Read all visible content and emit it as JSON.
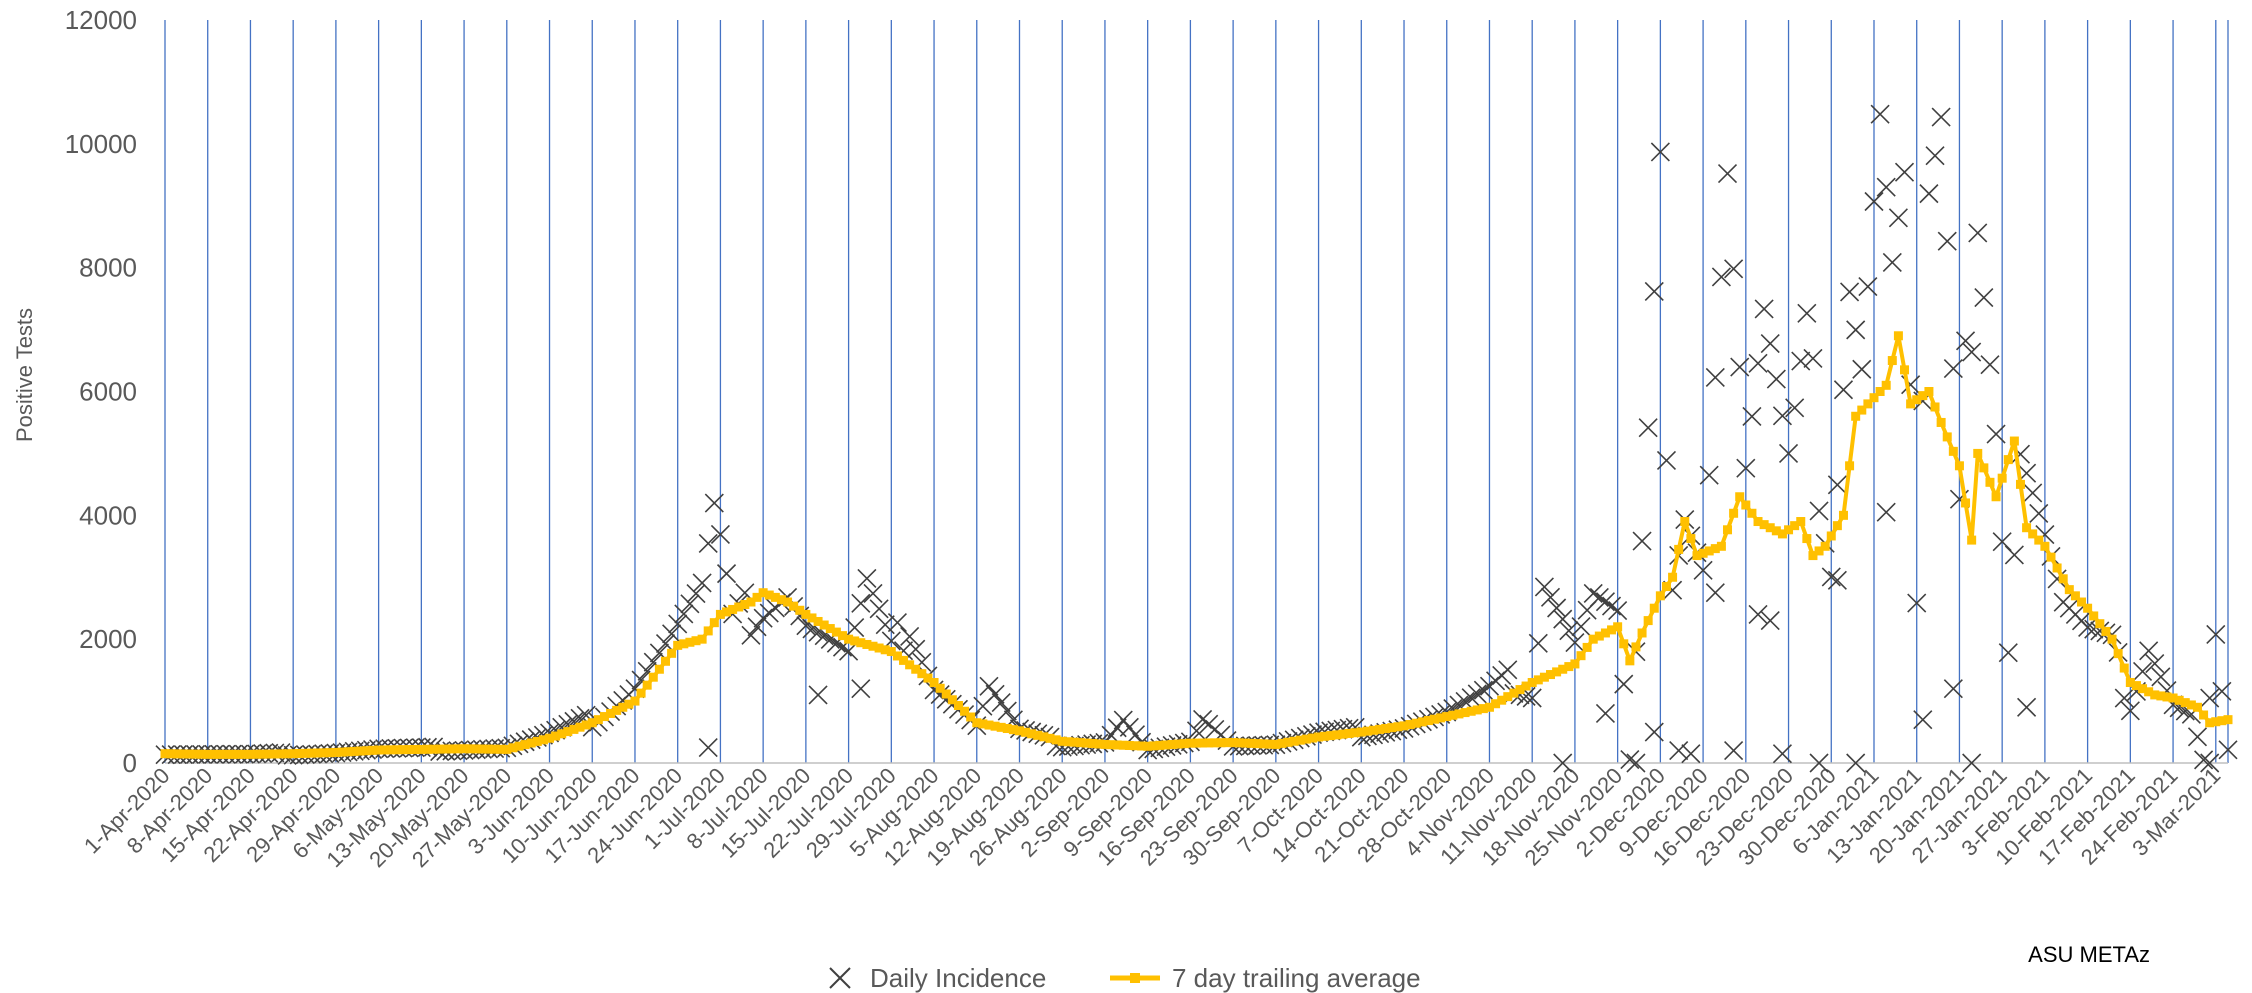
{
  "chart_data": {
    "type": "scatter",
    "title": "",
    "ylabel": "Positive Tests",
    "xlabel": "",
    "ylim": [
      0,
      12000
    ],
    "yticks": [
      0,
      2000,
      4000,
      6000,
      8000,
      10000,
      12000
    ],
    "grid": "vertical lines at each weekly date tick",
    "legend_position": "bottom-center",
    "credit": "ASU METAz",
    "xtick_labels": [
      "1-Apr-2020",
      "8-Apr-2020",
      "15-Apr-2020",
      "22-Apr-2020",
      "29-Apr-2020",
      "6-May-2020",
      "13-May-2020",
      "20-May-2020",
      "27-May-2020",
      "3-Jun-2020",
      "10-Jun-2020",
      "17-Jun-2020",
      "24-Jun-2020",
      "1-Jul-2020",
      "8-Jul-2020",
      "15-Jul-2020",
      "22-Jul-2020",
      "29-Jul-2020",
      "5-Aug-2020",
      "12-Aug-2020",
      "19-Aug-2020",
      "26-Aug-2020",
      "2-Sep-2020",
      "9-Sep-2020",
      "16-Sep-2020",
      "23-Sep-2020",
      "30-Sep-2020",
      "7-Oct-2020",
      "14-Oct-2020",
      "21-Oct-2020",
      "28-Oct-2020",
      "4-Nov-2020",
      "11-Nov-2020",
      "18-Nov-2020",
      "25-Nov-2020",
      "2-Dec-2020",
      "9-Dec-2020",
      "16-Dec-2020",
      "23-Dec-2020",
      "30-Dec-2020",
      "6-Jan-2021",
      "13-Jan-2021",
      "20-Jan-2021",
      "27-Jan-2021",
      "3-Feb-2021",
      "10-Feb-2021",
      "17-Feb-2021",
      "24-Feb-2021",
      "3-Mar-2021"
    ],
    "x_start": "1-Apr-2020",
    "x_end": "5-Mar-2021",
    "series": [
      {
        "name": "Daily Incidence",
        "marker": "x",
        "color": "#404040",
        "note": "weekly anchor values; daily points interpolated between them",
        "anchors": [
          [
            "1-Apr-2020",
            150
          ],
          [
            "8-Apr-2020",
            140
          ],
          [
            "15-Apr-2020",
            130
          ],
          [
            "22-Apr-2020",
            150
          ],
          [
            "29-Apr-2020",
            170
          ],
          [
            "6-May-2020",
            220
          ],
          [
            "13-May-2020",
            220
          ],
          [
            "20-May-2020",
            230
          ],
          [
            "27-May-2020",
            250
          ],
          [
            "3-Jun-2020",
            450
          ],
          [
            "10-Jun-2020",
            700
          ],
          [
            "17-Jun-2020",
            1300
          ],
          [
            "24-Jun-2020",
            2200
          ],
          [
            "28-Jun-2020",
            2700
          ],
          [
            "30-Jun-2020",
            3800
          ],
          [
            "1-Jul-2020",
            3300
          ],
          [
            "3-Jul-2020",
            2100
          ],
          [
            "8-Jul-2020",
            2700
          ],
          [
            "12-Jul-2020",
            2900
          ],
          [
            "15-Jul-2020",
            2300
          ],
          [
            "22-Jul-2020",
            1700
          ],
          [
            "25-Jul-2020",
            2700
          ],
          [
            "29-Jul-2020",
            1700
          ],
          [
            "1-Aug-2020",
            2400
          ],
          [
            "5-Aug-2020",
            1300
          ],
          [
            "12-Aug-2020",
            600
          ],
          [
            "14-Aug-2020",
            1200
          ],
          [
            "19-Aug-2020",
            500
          ],
          [
            "26-Aug-2020",
            300
          ],
          [
            "2-Sep-2020",
            350
          ],
          [
            "5-Sep-2020",
            700
          ],
          [
            "9-Sep-2020",
            200
          ],
          [
            "16-Sep-2020",
            300
          ],
          [
            "19-Sep-2020",
            750
          ],
          [
            "23-Sep-2020",
            300
          ],
          [
            "30-Sep-2020",
            300
          ],
          [
            "7-Oct-2020",
            450
          ],
          [
            "14-Oct-2020",
            500
          ],
          [
            "21-Oct-2020",
            600
          ],
          [
            "28-Oct-2020",
            800
          ],
          [
            "4-Nov-2020",
            1100
          ],
          [
            "8-Nov-2020",
            1350
          ],
          [
            "11-Nov-2020",
            1200
          ],
          [
            "13-Nov-2020",
            3150
          ],
          [
            "18-Nov-2020",
            2000
          ],
          [
            "21-Nov-2020",
            2700
          ],
          [
            "25-Nov-2020",
            2300
          ],
          [
            "27-Nov-2020",
            50
          ],
          [
            "30-Nov-2020",
            4750
          ],
          [
            "2-Dec-2020",
            8450
          ],
          [
            "4-Dec-2020",
            3300
          ],
          [
            "6-Dec-2020",
            4500
          ],
          [
            "9-Dec-2020",
            3400
          ],
          [
            "13-Dec-2020",
            9800
          ],
          [
            "16-Dec-2020",
            4700
          ],
          [
            "19-Dec-2020",
            6950
          ],
          [
            "23-Dec-2020",
            4500
          ],
          [
            "26-Dec-2020",
            6300
          ],
          [
            "30-Dec-2020",
            3500
          ],
          [
            "2-Jan-2021",
            8450
          ],
          [
            "4-Jan-2021",
            6850
          ],
          [
            "7-Jan-2021",
            10800
          ],
          [
            "9-Jan-2021",
            8100
          ],
          [
            "11-Jan-2021",
            9300
          ],
          [
            "13-Jan-2021",
            2450
          ],
          [
            "15-Jan-2021",
            8500
          ],
          [
            "17-Jan-2021",
            9400
          ],
          [
            "20-Jan-2021",
            3700
          ],
          [
            "23-Jan-2021",
            10150
          ],
          [
            "26-Jan-2021",
            6000
          ],
          [
            "28-Jan-2021",
            1950
          ],
          [
            "30-Jan-2021",
            5300
          ],
          [
            "3-Feb-2021",
            3700
          ],
          [
            "6-Feb-2021",
            2500
          ],
          [
            "10-Feb-2021",
            2000
          ],
          [
            "14-Feb-2021",
            1800
          ],
          [
            "17-Feb-2021",
            1000
          ],
          [
            "20-Feb-2021",
            2050
          ],
          [
            "24-Feb-2021",
            1000
          ],
          [
            "27-Feb-2021",
            800
          ],
          [
            "1-Mar-2021",
            50
          ],
          [
            "3-Mar-2021",
            2000
          ],
          [
            "5-Mar-2021",
            200
          ]
        ],
        "outliers": [
          [
            "29-Jun-2020",
            250
          ],
          [
            "17-Jul-2020",
            1100
          ],
          [
            "24-Jul-2020",
            1200
          ],
          [
            "16-Nov-2020",
            0
          ],
          [
            "23-Nov-2020",
            800
          ],
          [
            "28-Nov-2020",
            0
          ],
          [
            "1-Dec-2020",
            500
          ],
          [
            "5-Dec-2020",
            200
          ],
          [
            "7-Dec-2020",
            150
          ],
          [
            "11-Dec-2020",
            2750
          ],
          [
            "14-Dec-2020",
            200
          ],
          [
            "18-Dec-2020",
            2400
          ],
          [
            "20-Dec-2020",
            2300
          ],
          [
            "22-Dec-2020",
            150
          ],
          [
            "28-Dec-2020",
            0
          ],
          [
            "31-Dec-2020",
            2950
          ],
          [
            "3-Jan-2021",
            0
          ],
          [
            "8-Jan-2021",
            4050
          ],
          [
            "14-Jan-2021",
            700
          ],
          [
            "19-Jan-2021",
            1200
          ],
          [
            "22-Jan-2021",
            0
          ],
          [
            "31-Jan-2021",
            900
          ],
          [
            "2-Mar-2021",
            0
          ]
        ]
      },
      {
        "name": "7 day trailing average",
        "marker": "square-line",
        "color": "#FFC000",
        "note": "weekly anchor values; daily points interpolated between them",
        "anchors": [
          [
            "1-Apr-2020",
            150
          ],
          [
            "8-Apr-2020",
            140
          ],
          [
            "15-Apr-2020",
            140
          ],
          [
            "22-Apr-2020",
            150
          ],
          [
            "29-Apr-2020",
            170
          ],
          [
            "6-May-2020",
            210
          ],
          [
            "13-May-2020",
            220
          ],
          [
            "20-May-2020",
            230
          ],
          [
            "27-May-2020",
            220
          ],
          [
            "3-Jun-2020",
            400
          ],
          [
            "10-Jun-2020",
            650
          ],
          [
            "17-Jun-2020",
            1000
          ],
          [
            "24-Jun-2020",
            1900
          ],
          [
            "28-Jun-2020",
            2000
          ],
          [
            "1-Jul-2020",
            2400
          ],
          [
            "6-Jul-2020",
            2600
          ],
          [
            "8-Jul-2020",
            2750
          ],
          [
            "12-Jul-2020",
            2600
          ],
          [
            "15-Jul-2020",
            2400
          ],
          [
            "22-Jul-2020",
            2000
          ],
          [
            "29-Jul-2020",
            1800
          ],
          [
            "5-Aug-2020",
            1300
          ],
          [
            "12-Aug-2020",
            650
          ],
          [
            "19-Aug-2020",
            520
          ],
          [
            "26-Aug-2020",
            350
          ],
          [
            "2-Sep-2020",
            300
          ],
          [
            "9-Sep-2020",
            270
          ],
          [
            "16-Sep-2020",
            320
          ],
          [
            "23-Sep-2020",
            330
          ],
          [
            "30-Sep-2020",
            300
          ],
          [
            "7-Oct-2020",
            420
          ],
          [
            "14-Oct-2020",
            500
          ],
          [
            "21-Oct-2020",
            600
          ],
          [
            "28-Oct-2020",
            750
          ],
          [
            "4-Nov-2020",
            900
          ],
          [
            "11-Nov-2020",
            1300
          ],
          [
            "18-Nov-2020",
            1600
          ],
          [
            "21-Nov-2020",
            2000
          ],
          [
            "25-Nov-2020",
            2200
          ],
          [
            "27-Nov-2020",
            1650
          ],
          [
            "29-Nov-2020",
            2100
          ],
          [
            "2-Dec-2020",
            2700
          ],
          [
            "4-Dec-2020",
            3000
          ],
          [
            "6-Dec-2020",
            3900
          ],
          [
            "8-Dec-2020",
            3350
          ],
          [
            "12-Dec-2020",
            3500
          ],
          [
            "15-Dec-2020",
            4300
          ],
          [
            "18-Dec-2020",
            3900
          ],
          [
            "22-Dec-2020",
            3700
          ],
          [
            "25-Dec-2020",
            3900
          ],
          [
            "27-Dec-2020",
            3350
          ],
          [
            "29-Dec-2020",
            3500
          ],
          [
            "1-Jan-2021",
            4000
          ],
          [
            "3-Jan-2021",
            5600
          ],
          [
            "5-Jan-2021",
            5800
          ],
          [
            "8-Jan-2021",
            6100
          ],
          [
            "10-Jan-2021",
            6900
          ],
          [
            "12-Jan-2021",
            5800
          ],
          [
            "15-Jan-2021",
            6000
          ],
          [
            "17-Jan-2021",
            5500
          ],
          [
            "20-Jan-2021",
            4800
          ],
          [
            "22-Jan-2021",
            3600
          ],
          [
            "23-Jan-2021",
            5000
          ],
          [
            "26-Jan-2021",
            4300
          ],
          [
            "29-Jan-2021",
            5200
          ],
          [
            "31-Jan-2021",
            3800
          ],
          [
            "3-Feb-2021",
            3500
          ],
          [
            "7-Feb-2021",
            2800
          ],
          [
            "10-Feb-2021",
            2500
          ],
          [
            "14-Feb-2021",
            2000
          ],
          [
            "17-Feb-2021",
            1300
          ],
          [
            "21-Feb-2021",
            1100
          ],
          [
            "24-Feb-2021",
            1050
          ],
          [
            "28-Feb-2021",
            900
          ],
          [
            "2-Mar-2021",
            650
          ],
          [
            "5-Mar-2021",
            700
          ]
        ]
      }
    ]
  }
}
